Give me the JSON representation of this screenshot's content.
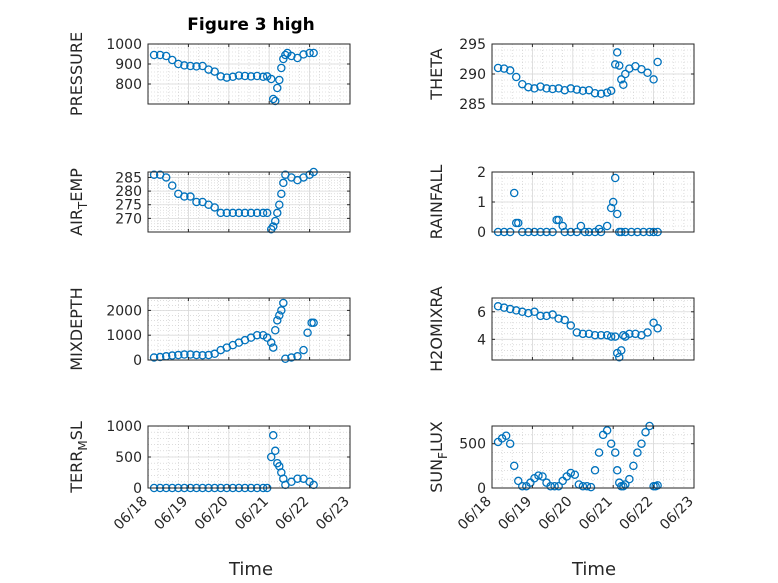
{
  "figure": {
    "title": "Figure 3 high",
    "marker_color": "#0072bd",
    "xlabel": "Time",
    "x_ticks": [
      "06/18",
      "06/19",
      "06/20",
      "06/21",
      "06/22",
      "06/23"
    ]
  },
  "chart_data": [
    {
      "type": "scatter",
      "ylabel": "PRESSURE",
      "ylim": [
        700,
        1000
      ],
      "yticks": [
        800,
        900,
        1000
      ],
      "grid": true,
      "xlim": [
        0,
        5
      ],
      "x": [
        0.15,
        0.3,
        0.45,
        0.6,
        0.75,
        0.9,
        1.05,
        1.2,
        1.35,
        1.5,
        1.65,
        1.8,
        1.95,
        2.1,
        2.25,
        2.4,
        2.55,
        2.7,
        2.85,
        2.95,
        3.05,
        3.1,
        3.15,
        3.2,
        3.25,
        3.3,
        3.35,
        3.4,
        3.45,
        3.55,
        3.7,
        3.85,
        4.0,
        4.1
      ],
      "values": [
        945,
        945,
        940,
        920,
        900,
        893,
        890,
        888,
        890,
        872,
        862,
        838,
        832,
        836,
        842,
        840,
        838,
        840,
        836,
        838,
        825,
        725,
        715,
        780,
        820,
        880,
        925,
        945,
        955,
        940,
        930,
        948,
        955,
        955
      ]
    },
    {
      "type": "scatter",
      "ylabel": "THETA",
      "ylim": [
        285,
        295
      ],
      "yticks": [
        285,
        290,
        295
      ],
      "grid": true,
      "xlim": [
        0,
        5
      ],
      "x": [
        0.15,
        0.3,
        0.45,
        0.6,
        0.75,
        0.9,
        1.05,
        1.2,
        1.35,
        1.5,
        1.65,
        1.8,
        1.95,
        2.1,
        2.25,
        2.4,
        2.55,
        2.7,
        2.85,
        2.95,
        3.05,
        3.1,
        3.15,
        3.2,
        3.25,
        3.3,
        3.4,
        3.55,
        3.7,
        3.85,
        4.0,
        4.1
      ],
      "values": [
        291.0,
        290.9,
        290.6,
        289.5,
        288.3,
        287.8,
        287.6,
        287.9,
        287.6,
        287.5,
        287.6,
        287.3,
        287.6,
        287.4,
        287.2,
        287.3,
        286.8,
        286.7,
        286.9,
        287.2,
        291.6,
        293.6,
        291.4,
        289.1,
        288.2,
        290.0,
        290.9,
        291.3,
        290.8,
        290.2,
        289.1,
        292.0
      ]
    },
    {
      "type": "scatter",
      "ylabel": "AIR_TEMP",
      "ylim": [
        265,
        287
      ],
      "yticks": [
        270,
        275,
        280,
        285
      ],
      "grid": true,
      "xlim": [
        0,
        5
      ],
      "x": [
        0.15,
        0.3,
        0.45,
        0.6,
        0.75,
        0.9,
        1.05,
        1.2,
        1.35,
        1.5,
        1.65,
        1.8,
        1.95,
        2.1,
        2.25,
        2.4,
        2.55,
        2.7,
        2.85,
        2.95,
        3.05,
        3.1,
        3.15,
        3.2,
        3.25,
        3.3,
        3.35,
        3.4,
        3.55,
        3.7,
        3.85,
        4.0,
        4.1
      ],
      "values": [
        286,
        286,
        285,
        282,
        279,
        278,
        278,
        276,
        276,
        275,
        274,
        272,
        272,
        272,
        272,
        272,
        272,
        272,
        272,
        272,
        266,
        267,
        269,
        272,
        275,
        279,
        283,
        286,
        285,
        284,
        285,
        286,
        287
      ]
    },
    {
      "type": "scatter",
      "ylabel": "RAINFALL",
      "ylim": [
        0,
        2
      ],
      "yticks": [
        0,
        1,
        2
      ],
      "grid": true,
      "xlim": [
        0,
        5
      ],
      "x": [
        0.15,
        0.3,
        0.45,
        0.55,
        0.6,
        0.65,
        0.75,
        0.9,
        1.05,
        1.2,
        1.35,
        1.5,
        1.6,
        1.65,
        1.75,
        1.8,
        1.95,
        2.1,
        2.2,
        2.3,
        2.4,
        2.55,
        2.65,
        2.7,
        2.85,
        2.95,
        3.0,
        3.05,
        3.1,
        3.15,
        3.2,
        3.3,
        3.45,
        3.6,
        3.75,
        3.9,
        4.0,
        4.1
      ],
      "values": [
        0,
        0,
        0,
        1.3,
        0.3,
        0.3,
        0,
        0,
        0,
        0,
        0,
        0,
        0.4,
        0.4,
        0.2,
        0,
        0,
        0,
        0.2,
        0,
        0,
        0,
        0.1,
        0,
        0.2,
        0.8,
        1.0,
        1.8,
        0.6,
        0,
        0,
        0,
        0,
        0,
        0,
        0,
        0,
        0
      ]
    },
    {
      "type": "scatter",
      "ylabel": "MIXDEPTH",
      "ylim": [
        0,
        2500
      ],
      "yticks": [
        0,
        1000,
        2000
      ],
      "grid": true,
      "xlim": [
        0,
        5
      ],
      "x": [
        0.15,
        0.3,
        0.45,
        0.6,
        0.75,
        0.9,
        1.05,
        1.2,
        1.35,
        1.5,
        1.65,
        1.8,
        1.95,
        2.1,
        2.25,
        2.4,
        2.55,
        2.7,
        2.85,
        2.95,
        3.05,
        3.1,
        3.15,
        3.2,
        3.25,
        3.3,
        3.35,
        3.4,
        3.55,
        3.7,
        3.85,
        3.95,
        4.05,
        4.1
      ],
      "values": [
        100,
        120,
        150,
        180,
        200,
        220,
        220,
        200,
        190,
        200,
        250,
        400,
        500,
        600,
        700,
        800,
        900,
        1000,
        1000,
        900,
        700,
        500,
        1200,
        1600,
        1800,
        2000,
        2300,
        50,
        100,
        150,
        400,
        1100,
        1500,
        1500
      ]
    },
    {
      "type": "scatter",
      "ylabel": "H2OMIXRA",
      "ylim": [
        2.5,
        7
      ],
      "yticks": [
        4,
        6
      ],
      "grid": true,
      "xlim": [
        0,
        5
      ],
      "x": [
        0.15,
        0.3,
        0.45,
        0.6,
        0.75,
        0.9,
        1.05,
        1.2,
        1.35,
        1.5,
        1.65,
        1.8,
        1.95,
        2.1,
        2.25,
        2.4,
        2.55,
        2.7,
        2.85,
        2.95,
        3.05,
        3.1,
        3.15,
        3.2,
        3.25,
        3.3,
        3.4,
        3.55,
        3.7,
        3.85,
        4.0,
        4.1
      ],
      "values": [
        6.4,
        6.3,
        6.2,
        6.1,
        6.0,
        5.9,
        6.0,
        5.7,
        5.7,
        5.8,
        5.5,
        5.4,
        5.0,
        4.5,
        4.4,
        4.4,
        4.3,
        4.3,
        4.3,
        4.2,
        4.2,
        3.0,
        2.7,
        3.2,
        4.3,
        4.2,
        4.4,
        4.4,
        4.3,
        4.5,
        5.2,
        4.8
      ]
    },
    {
      "type": "scatter",
      "ylabel": "TERR_MSL",
      "ylim": [
        0,
        1000
      ],
      "yticks": [
        0,
        500,
        1000
      ],
      "grid": true,
      "xlim": [
        0,
        5
      ],
      "x": [
        0.15,
        0.3,
        0.45,
        0.6,
        0.75,
        0.9,
        1.05,
        1.2,
        1.35,
        1.5,
        1.65,
        1.8,
        1.95,
        2.1,
        2.25,
        2.4,
        2.55,
        2.7,
        2.85,
        2.95,
        3.05,
        3.1,
        3.15,
        3.2,
        3.25,
        3.3,
        3.35,
        3.4,
        3.55,
        3.7,
        3.85,
        4.0,
        4.1
      ],
      "values": [
        0,
        0,
        0,
        0,
        0,
        0,
        0,
        0,
        0,
        0,
        0,
        0,
        0,
        0,
        0,
        0,
        0,
        0,
        0,
        0,
        500,
        850,
        600,
        400,
        350,
        250,
        150,
        50,
        100,
        150,
        150,
        100,
        50
      ]
    },
    {
      "type": "scatter",
      "ylabel": "SUN_FLUX",
      "ylim": [
        0,
        700
      ],
      "yticks": [
        0,
        500
      ],
      "grid": true,
      "xlim": [
        0,
        5
      ],
      "x": [
        0.15,
        0.25,
        0.35,
        0.45,
        0.55,
        0.65,
        0.75,
        0.85,
        0.95,
        1.05,
        1.15,
        1.25,
        1.35,
        1.45,
        1.55,
        1.65,
        1.75,
        1.85,
        1.95,
        2.05,
        2.15,
        2.25,
        2.35,
        2.45,
        2.55,
        2.65,
        2.75,
        2.85,
        2.95,
        3.05,
        3.1,
        3.15,
        3.2,
        3.25,
        3.3,
        3.4,
        3.5,
        3.6,
        3.7,
        3.8,
        3.9,
        4.0,
        4.05,
        4.1
      ],
      "values": [
        520,
        560,
        590,
        500,
        250,
        80,
        20,
        20,
        60,
        110,
        140,
        130,
        60,
        20,
        20,
        20,
        80,
        130,
        170,
        150,
        40,
        20,
        20,
        10,
        200,
        400,
        600,
        650,
        500,
        400,
        200,
        60,
        20,
        20,
        40,
        100,
        250,
        400,
        500,
        630,
        700,
        20,
        20,
        30
      ]
    }
  ]
}
